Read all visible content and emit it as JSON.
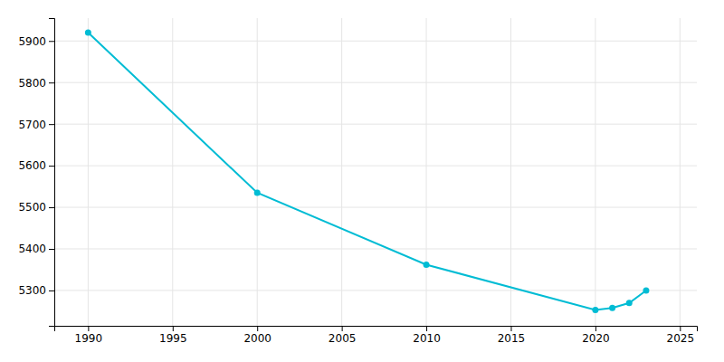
{
  "chart_data": {
    "type": "line",
    "x": [
      1990,
      2000,
      2010,
      2020,
      2021,
      2022,
      2023
    ],
    "values": [
      5920,
      5535,
      5362,
      5253,
      5258,
      5270,
      5300
    ],
    "color": "#00bcd4",
    "marker": "circle",
    "xlim": [
      1988,
      2026
    ],
    "ylim": [
      5215,
      5955
    ],
    "xticks": [
      1990,
      1995,
      2000,
      2005,
      2010,
      2015,
      2020,
      2025
    ],
    "yticks": [
      5300,
      5400,
      5500,
      5600,
      5700,
      5800,
      5900
    ],
    "grid": true
  }
}
